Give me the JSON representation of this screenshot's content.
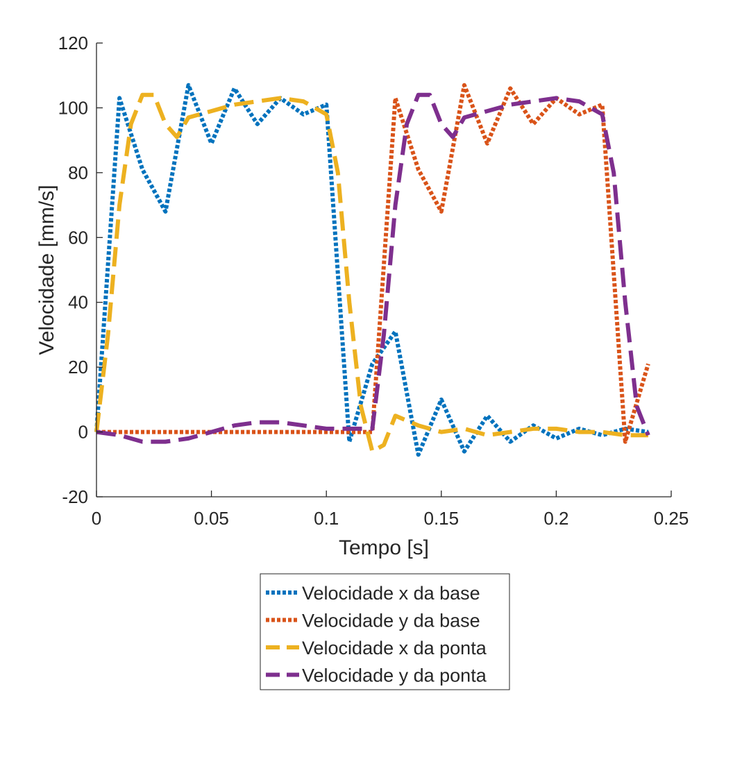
{
  "chart_data": {
    "type": "line",
    "title": "",
    "xlabel": "Tempo [s]",
    "ylabel": "Velocidade [mm/s]",
    "xlim": [
      0,
      0.25
    ],
    "ylim": [
      -20,
      120
    ],
    "xticks": [
      0,
      0.05,
      0.1,
      0.15,
      0.2,
      0.25
    ],
    "xtick_labels": [
      "0",
      "0.05",
      "0.1",
      "0.15",
      "0.2",
      "0.25"
    ],
    "yticks": [
      -20,
      0,
      20,
      40,
      60,
      80,
      100,
      120
    ],
    "ytick_labels": [
      "-20",
      "0",
      "20",
      "40",
      "60",
      "80",
      "100",
      "120"
    ],
    "grid": false,
    "legend_position": "below the plot",
    "series": [
      {
        "name": "Velocidade x da base",
        "color": "#0072BD",
        "style": "dotted",
        "x": [
          0,
          0.01,
          0.02,
          0.03,
          0.04,
          0.05,
          0.06,
          0.07,
          0.08,
          0.09,
          0.1,
          0.11,
          0.12,
          0.13,
          0.14,
          0.15,
          0.16,
          0.17,
          0.18,
          0.19,
          0.2,
          0.21,
          0.22,
          0.23,
          0.24
        ],
        "y": [
          0,
          103,
          81,
          68,
          107,
          89,
          106,
          95,
          103,
          98,
          101,
          -3,
          21,
          31,
          -7,
          10,
          -6,
          5,
          -3,
          2,
          -2,
          1,
          -1,
          1,
          0
        ]
      },
      {
        "name": "Velocidade y da base",
        "color": "#D95319",
        "style": "dotted",
        "x": [
          0,
          0.01,
          0.02,
          0.03,
          0.04,
          0.05,
          0.06,
          0.07,
          0.08,
          0.09,
          0.1,
          0.11,
          0.12,
          0.13,
          0.14,
          0.15,
          0.16,
          0.17,
          0.18,
          0.19,
          0.2,
          0.21,
          0.22,
          0.23,
          0.24
        ],
        "y": [
          0,
          0,
          0,
          0,
          0,
          0,
          0,
          0,
          0,
          0,
          0,
          0,
          0,
          103,
          81,
          68,
          107,
          89,
          106,
          95,
          103,
          98,
          101,
          -3,
          21
        ]
      },
      {
        "name": "Velocidade x da ponta",
        "color": "#EDB120",
        "style": "dashed",
        "x": [
          0,
          0.005,
          0.01,
          0.015,
          0.02,
          0.025,
          0.03,
          0.035,
          0.04,
          0.05,
          0.06,
          0.07,
          0.08,
          0.09,
          0.1,
          0.105,
          0.11,
          0.115,
          0.12,
          0.125,
          0.13,
          0.14,
          0.15,
          0.16,
          0.17,
          0.18,
          0.19,
          0.2,
          0.21,
          0.22,
          0.23,
          0.24
        ],
        "y": [
          0,
          30,
          70,
          95,
          104,
          104,
          95,
          91,
          97,
          99,
          101,
          102,
          103,
          102,
          98,
          80,
          40,
          8,
          -6,
          -4,
          5,
          2,
          0,
          1,
          -1,
          0,
          1,
          1,
          0,
          0,
          -1,
          -1
        ]
      },
      {
        "name": "Velocidade y da ponta",
        "color": "#7E2F8E",
        "style": "dashed",
        "x": [
          0,
          0.01,
          0.02,
          0.03,
          0.04,
          0.05,
          0.06,
          0.07,
          0.08,
          0.09,
          0.1,
          0.11,
          0.12,
          0.125,
          0.13,
          0.135,
          0.14,
          0.145,
          0.15,
          0.155,
          0.16,
          0.17,
          0.18,
          0.19,
          0.2,
          0.21,
          0.22,
          0.225,
          0.23,
          0.235,
          0.24
        ],
        "y": [
          0,
          -1,
          -3,
          -3,
          -2,
          0,
          2,
          3,
          3,
          2,
          1,
          1,
          1,
          30,
          70,
          95,
          104,
          104,
          95,
          91,
          97,
          99,
          101,
          102,
          103,
          102,
          98,
          80,
          40,
          8,
          -1
        ]
      }
    ]
  }
}
